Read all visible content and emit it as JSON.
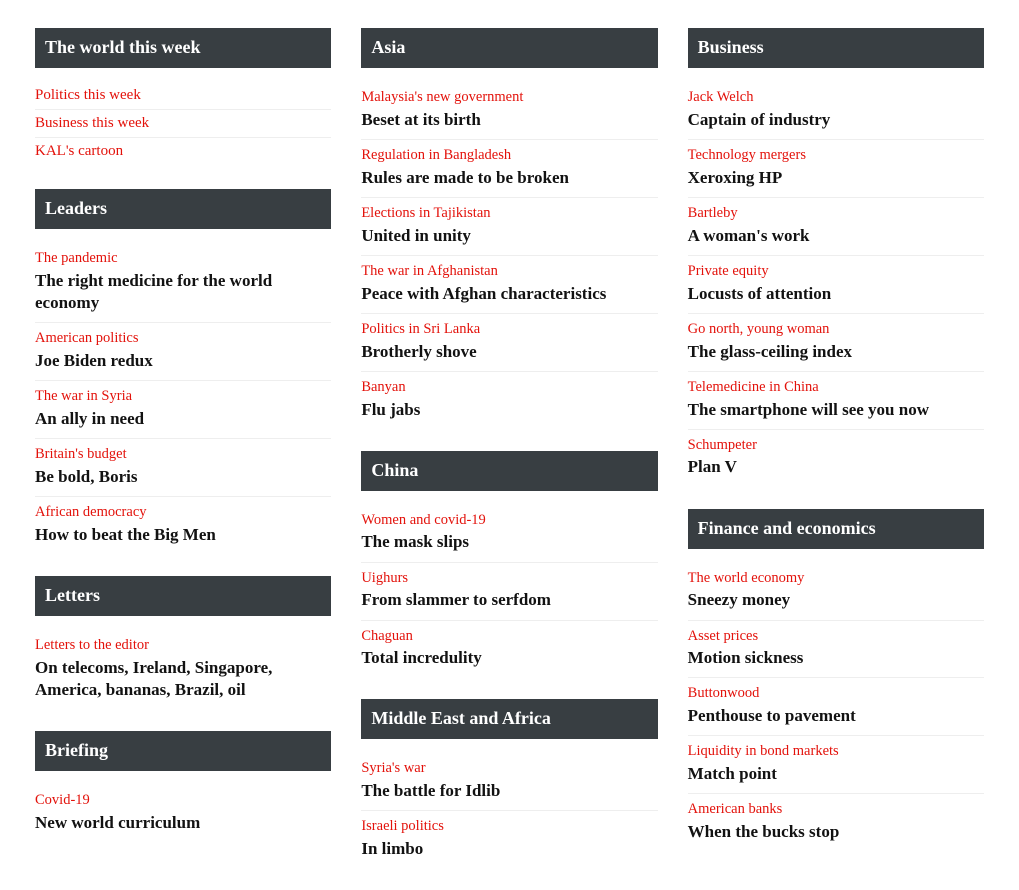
{
  "colors": {
    "header_bg": "#383e42",
    "header_text": "#ffffff",
    "kicker": "#e3120b",
    "headline": "#121212",
    "divider": "#eeeeee",
    "background": "#ffffff"
  },
  "col1": {
    "s0": {
      "title": "The world this week",
      "links": [
        "Politics this week",
        "Business this week",
        "KAL's cartoon"
      ]
    },
    "s1": {
      "title": "Leaders",
      "articles": [
        {
          "kicker": "The pandemic",
          "headline": "The right medicine for the world economy"
        },
        {
          "kicker": "American politics",
          "headline": "Joe Biden redux"
        },
        {
          "kicker": "The war in Syria",
          "headline": "An ally in need"
        },
        {
          "kicker": "Britain's budget",
          "headline": "Be bold, Boris"
        },
        {
          "kicker": "African democracy",
          "headline": "How to beat the Big Men"
        }
      ]
    },
    "s2": {
      "title": "Letters",
      "articles": [
        {
          "kicker": "Letters to the editor",
          "headline": "On telecoms, Ireland, Singapore, America, bananas, Brazil, oil"
        }
      ]
    },
    "s3": {
      "title": "Briefing",
      "articles": [
        {
          "kicker": "Covid-19",
          "headline": "New world curriculum"
        }
      ]
    }
  },
  "col2": {
    "s0": {
      "title": "Asia",
      "articles": [
        {
          "kicker": "Malaysia's new government",
          "headline": "Beset at its birth"
        },
        {
          "kicker": "Regulation in Bangladesh",
          "headline": "Rules are made to be broken"
        },
        {
          "kicker": "Elections in Tajikistan",
          "headline": "United in unity"
        },
        {
          "kicker": "The war in Afghanistan",
          "headline": "Peace with Afghan characteristics"
        },
        {
          "kicker": "Politics in Sri Lanka",
          "headline": "Brotherly shove"
        },
        {
          "kicker": "Banyan",
          "headline": "Flu jabs"
        }
      ]
    },
    "s1": {
      "title": "China",
      "articles": [
        {
          "kicker": "Women and covid-19",
          "headline": "The mask slips"
        },
        {
          "kicker": "Uighurs",
          "headline": "From slammer to serfdom"
        },
        {
          "kicker": "Chaguan",
          "headline": "Total incredulity"
        }
      ]
    },
    "s2": {
      "title": "Middle East and Africa",
      "articles": [
        {
          "kicker": "Syria's war",
          "headline": "The battle for Idlib"
        },
        {
          "kicker": "Israeli politics",
          "headline": "In limbo"
        }
      ]
    }
  },
  "col3": {
    "s0": {
      "title": "Business",
      "articles": [
        {
          "kicker": "Jack Welch",
          "headline": "Captain of industry"
        },
        {
          "kicker": "Technology mergers",
          "headline": "Xeroxing HP"
        },
        {
          "kicker": "Bartleby",
          "headline": "A woman's work"
        },
        {
          "kicker": "Private equity",
          "headline": "Locusts of attention"
        },
        {
          "kicker": "Go north, young woman",
          "headline": "The glass-ceiling index"
        },
        {
          "kicker": "Telemedicine in China",
          "headline": "The smartphone will see you now"
        },
        {
          "kicker": "Schumpeter",
          "headline": "Plan V"
        }
      ]
    },
    "s1": {
      "title": "Finance and economics",
      "articles": [
        {
          "kicker": "The world economy",
          "headline": "Sneezy money"
        },
        {
          "kicker": "Asset prices",
          "headline": "Motion sickness"
        },
        {
          "kicker": "Buttonwood",
          "headline": "Penthouse to pavement"
        },
        {
          "kicker": "Liquidity in bond markets",
          "headline": "Match point"
        },
        {
          "kicker": "American banks",
          "headline": "When the bucks stop"
        }
      ]
    }
  }
}
